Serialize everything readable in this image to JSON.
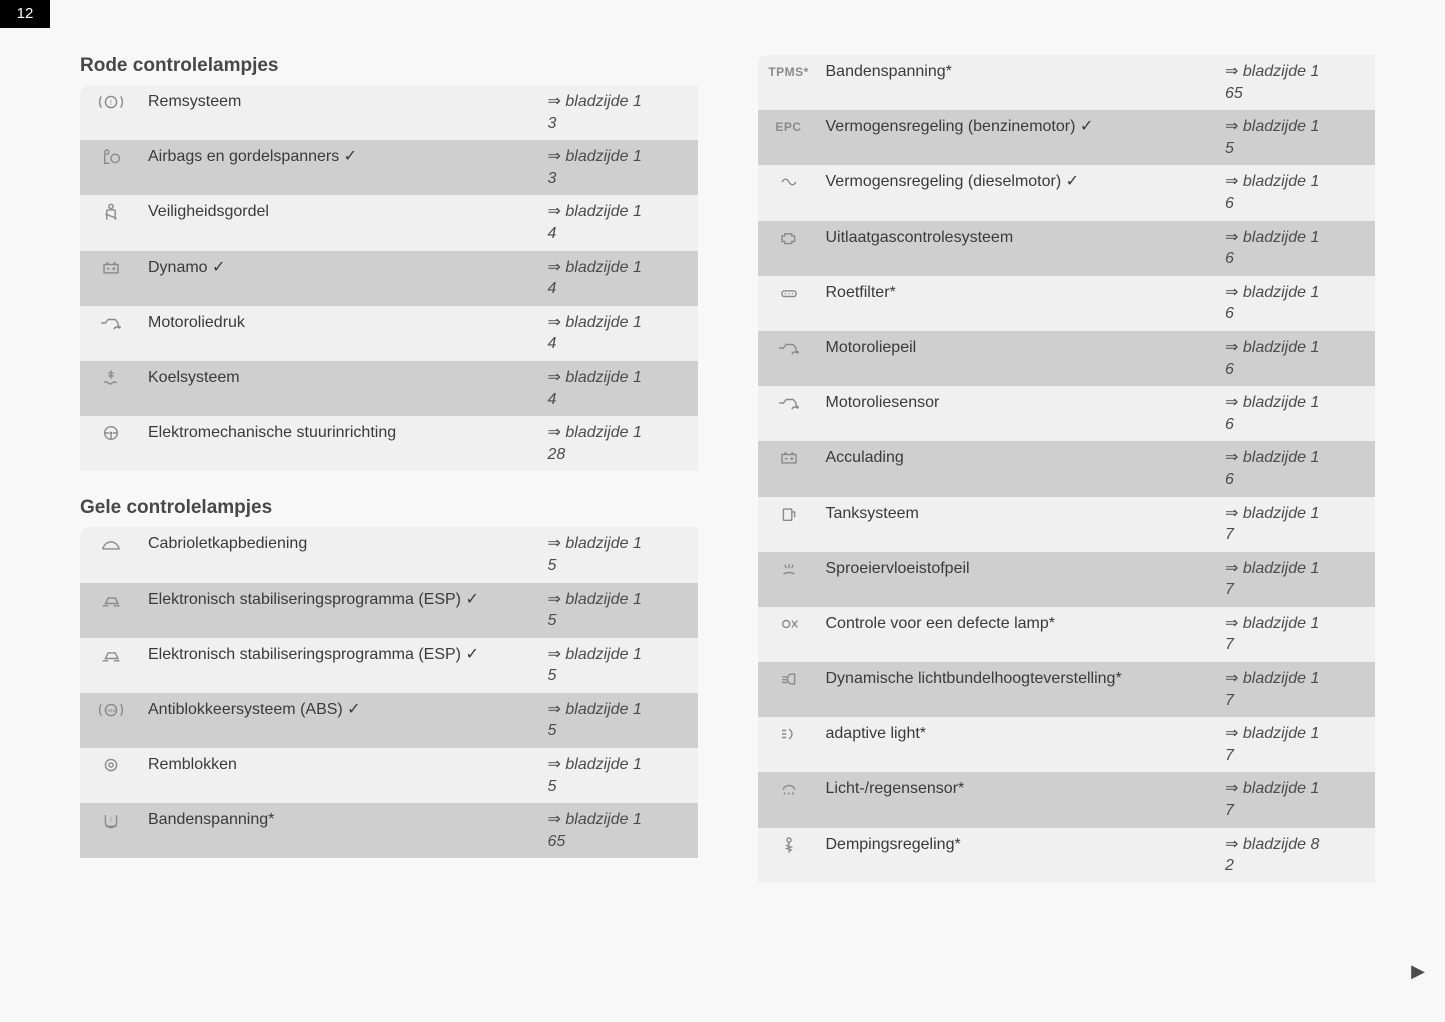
{
  "page_number": "12",
  "colors": {
    "row_shade": "#cfcfcf",
    "row_plain": "#f0f0f0",
    "page_bg": "#f8f8f8",
    "text": "#3a3a3a",
    "italic": "#4c4c4c",
    "icon": "#8a8a8a"
  },
  "typography": {
    "title_pt": 19,
    "body_pt": 16,
    "italic_label": "bladzijde"
  },
  "ref_prefix": "⇒ bladzijde ",
  "sections": {
    "red": {
      "title": "Rode controlelampjes",
      "rows": [
        {
          "icon": "brake-warning-icon",
          "label": "Remsysteem",
          "ref1": "1",
          "ref2": "3",
          "shade": false
        },
        {
          "icon": "airbag-icon",
          "label": "Airbags en gordelspanners ✓",
          "ref1": "1",
          "ref2": "3",
          "shade": true
        },
        {
          "icon": "seatbelt-icon",
          "label": "Veiligheidsgordel",
          "ref1": "1",
          "ref2": "4",
          "shade": false
        },
        {
          "icon": "battery-icon",
          "label": "Dynamo ✓",
          "ref1": "1",
          "ref2": "4",
          "shade": true
        },
        {
          "icon": "oil-pressure-icon",
          "label": "Motoroliedruk",
          "ref1": "1",
          "ref2": "4",
          "shade": false
        },
        {
          "icon": "coolant-icon",
          "label": "Koelsysteem",
          "ref1": "1",
          "ref2": "4",
          "shade": true
        },
        {
          "icon": "steering-wheel-icon",
          "label": "Elektromechanische stuurinrichting",
          "ref1": "1",
          "ref2": "28",
          "shade": false
        }
      ]
    },
    "yellow": {
      "title": "Gele controlelampjes",
      "rows": [
        {
          "icon": "convertible-top-icon",
          "label": "Cabrioletkapbediening",
          "ref1": "1",
          "ref2": "5",
          "shade": false
        },
        {
          "icon": "esp-car-icon",
          "label": "Elektronisch stabiliseringsprogramma (ESP) ✓",
          "ref1": "1",
          "ref2": "5",
          "shade": true
        },
        {
          "icon": "esp-off-icon",
          "label": "Elektronisch stabiliseringsprogramma (ESP) ✓",
          "ref1": "1",
          "ref2": "5",
          "shade": false
        },
        {
          "icon": "abs-icon",
          "label": "Antiblokkeersysteem (ABS) ✓",
          "ref1": "1",
          "ref2": "5",
          "shade": true
        },
        {
          "icon": "brake-pad-icon",
          "label": "Remblokken",
          "ref1": "1",
          "ref2": "5",
          "shade": false
        },
        {
          "icon": "tire-pressure-icon",
          "label": "Bandenspanning*",
          "ref1": "1",
          "ref2": "65",
          "shade": true
        }
      ]
    },
    "yellow_cont": {
      "rows": [
        {
          "icon": "tpms-text-icon",
          "icon_text": "TPMS*",
          "label": "Bandenspanning*",
          "ref1": "1",
          "ref2": "65",
          "shade": false
        },
        {
          "icon": "epc-text-icon",
          "icon_text": "EPC",
          "label": "Vermogensregeling (benzinemotor) ✓",
          "ref1": "1",
          "ref2": "5",
          "shade": true
        },
        {
          "icon": "glow-plug-icon",
          "label": "Vermogensregeling (dieselmotor) ✓",
          "ref1": "1",
          "ref2": "6",
          "shade": false
        },
        {
          "icon": "engine-icon",
          "label": "Uitlaatgascontrolesysteem",
          "ref1": "1",
          "ref2": "6",
          "shade": true
        },
        {
          "icon": "dpf-icon",
          "label": "Roetfilter*",
          "ref1": "1",
          "ref2": "6",
          "shade": false
        },
        {
          "icon": "oil-level-icon",
          "label": "Motoroliepeil",
          "ref1": "1",
          "ref2": "6",
          "shade": true
        },
        {
          "icon": "oil-sensor-icon",
          "label": "Motoroliesensor",
          "ref1": "1",
          "ref2": "6",
          "shade": false
        },
        {
          "icon": "battery-charge-icon",
          "label": "Acculading",
          "ref1": "1",
          "ref2": "6",
          "shade": true
        },
        {
          "icon": "fuel-icon",
          "label": "Tanksysteem",
          "ref1": "1",
          "ref2": "7",
          "shade": false
        },
        {
          "icon": "washer-fluid-icon",
          "label": "Sproeiervloeistofpeil",
          "ref1": "1",
          "ref2": "7",
          "shade": true
        },
        {
          "icon": "bulb-failure-icon",
          "label": "Controle voor een defecte lamp*",
          "ref1": "1",
          "ref2": "7",
          "shade": false
        },
        {
          "icon": "headlight-range-icon",
          "label": "Dynamische lichtbundelhoogteverstelling*",
          "ref1": "1",
          "ref2": "7",
          "shade": true
        },
        {
          "icon": "adaptive-light-icon",
          "label": "adaptive light*",
          "ref1": "1",
          "ref2": "7",
          "shade": false
        },
        {
          "icon": "rain-light-sensor-icon",
          "label": "Licht-/regensensor*",
          "ref1": "1",
          "ref2": "7",
          "shade": true
        },
        {
          "icon": "suspension-icon",
          "label": "Dempingsregeling*",
          "ref1": "8",
          "ref2": "2",
          "shade": false
        }
      ]
    }
  },
  "next_arrow": "▶"
}
